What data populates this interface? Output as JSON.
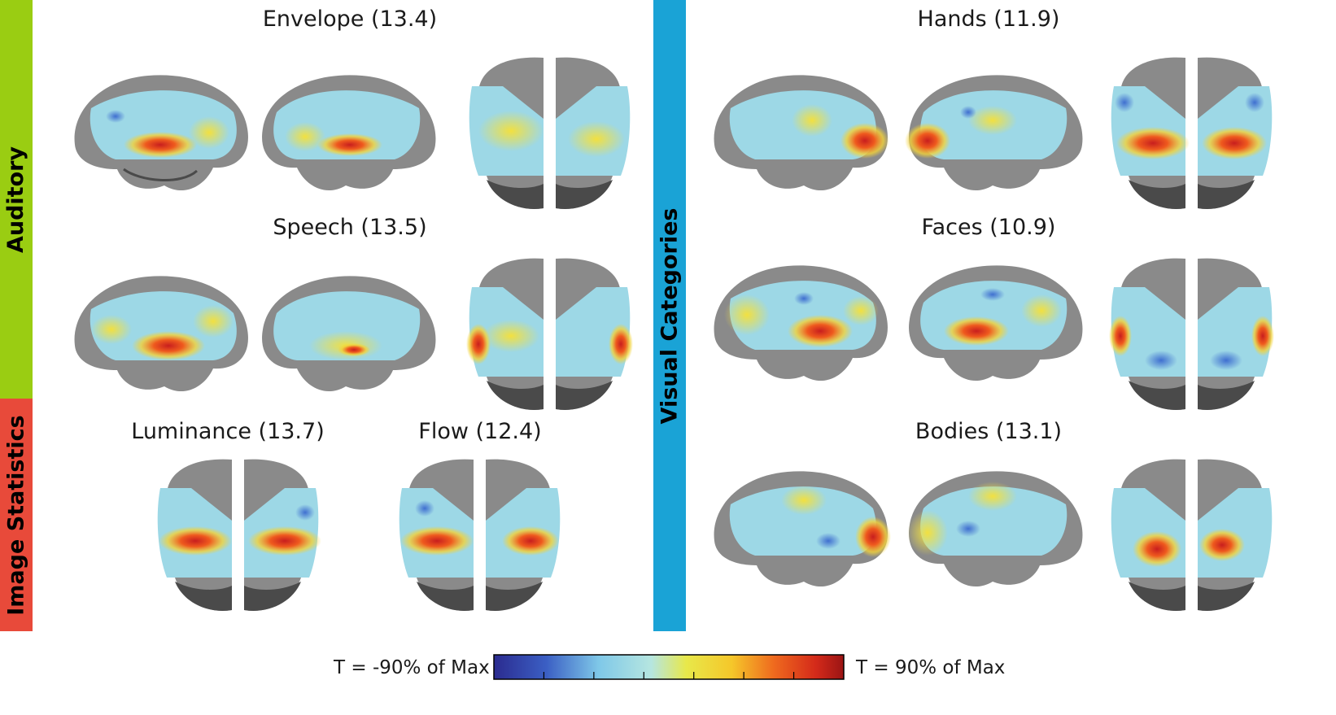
{
  "side_labels": {
    "auditory": "Auditory",
    "image_statistics": "Image Statistics",
    "visual_categories": "Visual Categories"
  },
  "colors": {
    "auditory": "#9acd12",
    "image_statistics": "#e84a3a",
    "visual_categories": "#1aa3d6",
    "brain_base": "#8a8a8a",
    "brain_dark": "#4a4a4a"
  },
  "panels": {
    "envelope": "Envelope (13.4)",
    "speech": "Speech (13.5)",
    "luminance": "Luminance (13.7)",
    "flow": "Flow (12.4)",
    "hands": "Hands (11.9)",
    "faces": "Faces (10.9)",
    "bodies": "Bodies (13.1)"
  },
  "colorbar": {
    "min_label": "T = -90% of Max",
    "max_label": "T = 90% of Max",
    "ticks": 6
  }
}
